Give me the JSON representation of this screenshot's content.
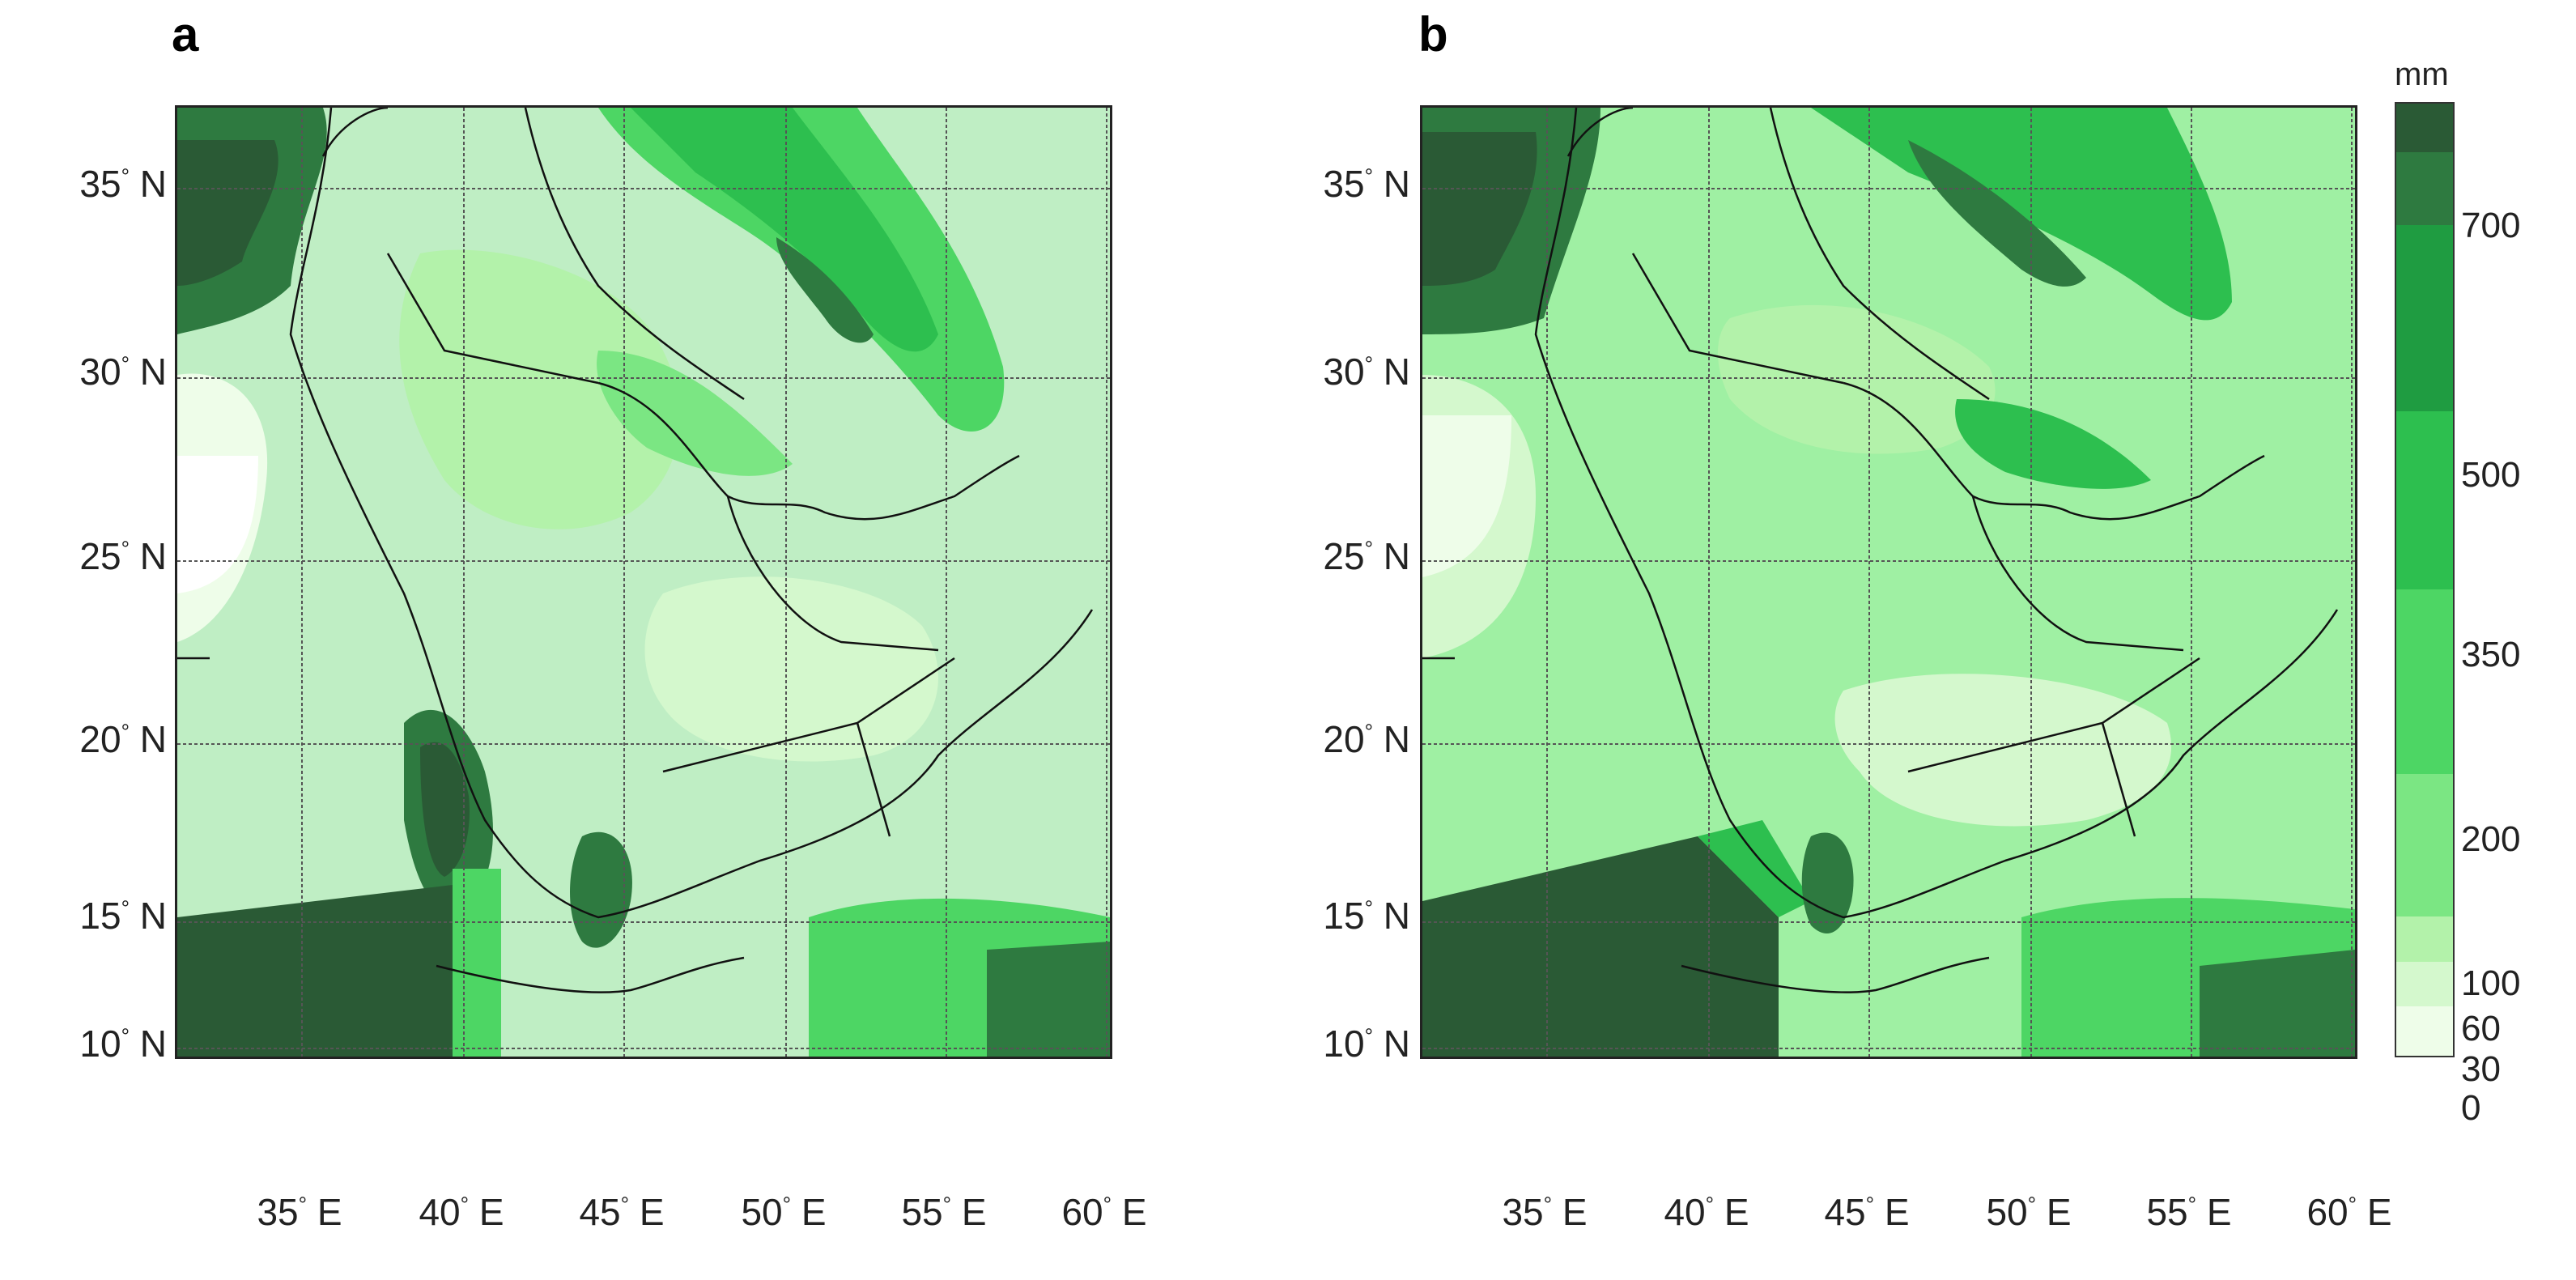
{
  "panels": [
    {
      "letter": "a"
    },
    {
      "letter": "b"
    }
  ],
  "lat_labels": [
    "35",
    "30",
    "25",
    "20",
    "15",
    "10"
  ],
  "lat_suffix": "N",
  "lon_labels": [
    "35",
    "40",
    "45",
    "50",
    "55",
    "60"
  ],
  "lon_suffix": "E",
  "degree_symbol": "°",
  "colorbar": {
    "unit": "mm",
    "ticks": [
      "0",
      "30",
      "60",
      "100",
      "200",
      "350",
      "500",
      "700"
    ],
    "colors": [
      "#eefde9",
      "#d4f8cd",
      "#b3f2aa",
      "#7be683",
      "#4dd664",
      "#2dbf4f",
      "#1f9c41",
      "#2e7a40",
      "#2a5a35"
    ]
  }
}
